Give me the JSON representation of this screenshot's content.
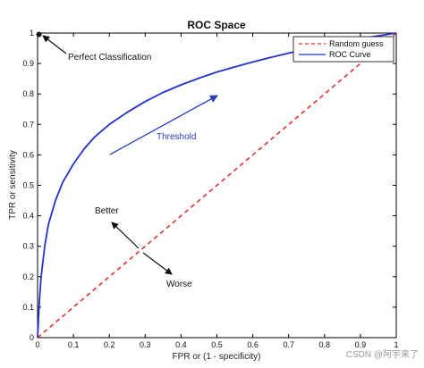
{
  "chart_data": {
    "type": "line",
    "title": "ROC Space",
    "xlabel": "FPR or (1 - specificity)",
    "ylabel": "TPR or sensitivity",
    "xlim": [
      0,
      1
    ],
    "ylim": [
      0,
      1
    ],
    "xticks": [
      "0",
      "0.1",
      "0.2",
      "0.3",
      "0.4",
      "0.5",
      "0.6",
      "0.7",
      "0.8",
      "0.9",
      "1"
    ],
    "yticks": [
      "0",
      "0.1",
      "0.2",
      "0.3",
      "0.4",
      "0.5",
      "0.6",
      "0.7",
      "0.8",
      "0.9",
      "1"
    ],
    "grid": false,
    "legend_position": "top-right",
    "colors": {
      "random": "#e03030",
      "roc": "#2233cc",
      "threshold": "#2a3fbf"
    },
    "series": [
      {
        "name": "Random guess",
        "style": "dashed",
        "x": [
          0,
          1
        ],
        "y": [
          0,
          1
        ]
      },
      {
        "name": "ROC Curve",
        "style": "solid",
        "x": [
          0,
          0.005,
          0.01,
          0.02,
          0.03,
          0.05,
          0.07,
          0.1,
          0.13,
          0.16,
          0.2,
          0.25,
          0.3,
          0.35,
          0.4,
          0.45,
          0.5,
          0.55,
          0.6,
          0.65,
          0.7,
          0.75,
          0.8,
          0.85,
          0.9,
          0.95,
          1.0
        ],
        "y": [
          0,
          0.12,
          0.2,
          0.3,
          0.37,
          0.45,
          0.51,
          0.57,
          0.62,
          0.66,
          0.7,
          0.74,
          0.775,
          0.805,
          0.83,
          0.852,
          0.872,
          0.889,
          0.905,
          0.92,
          0.934,
          0.947,
          0.959,
          0.971,
          0.982,
          0.991,
          1.0
        ]
      }
    ],
    "annotations": [
      {
        "text": "Perfect Classification",
        "point": [
          0,
          1
        ]
      },
      {
        "text": "Threshold",
        "color": "blue"
      },
      {
        "text": "Better"
      },
      {
        "text": "Worse"
      }
    ]
  },
  "watermark": "CSDN @阿宇来了"
}
